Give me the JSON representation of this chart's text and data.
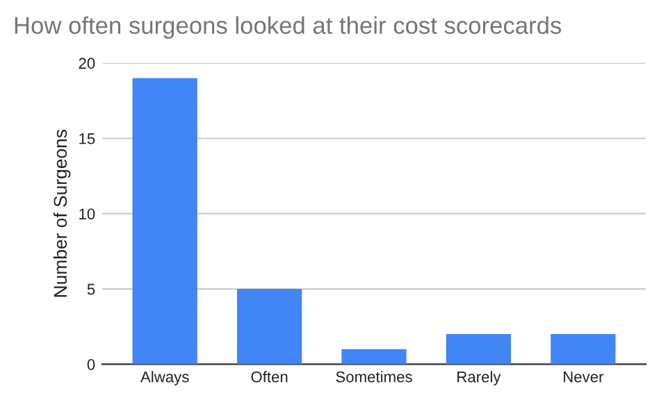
{
  "chart_data": {
    "type": "bar",
    "title": "How often surgeons looked at their cost scorecards",
    "ylabel": "Number of Surgeons",
    "categories": [
      "Always",
      "Often",
      "Sometimes",
      "Rarely",
      "Never"
    ],
    "values": [
      19,
      5,
      1,
      2,
      2
    ],
    "color": "#4285f4",
    "ylim": [
      0,
      20
    ],
    "yticks": [
      0,
      5,
      10,
      15,
      20
    ],
    "grid": "y",
    "legend": false
  }
}
